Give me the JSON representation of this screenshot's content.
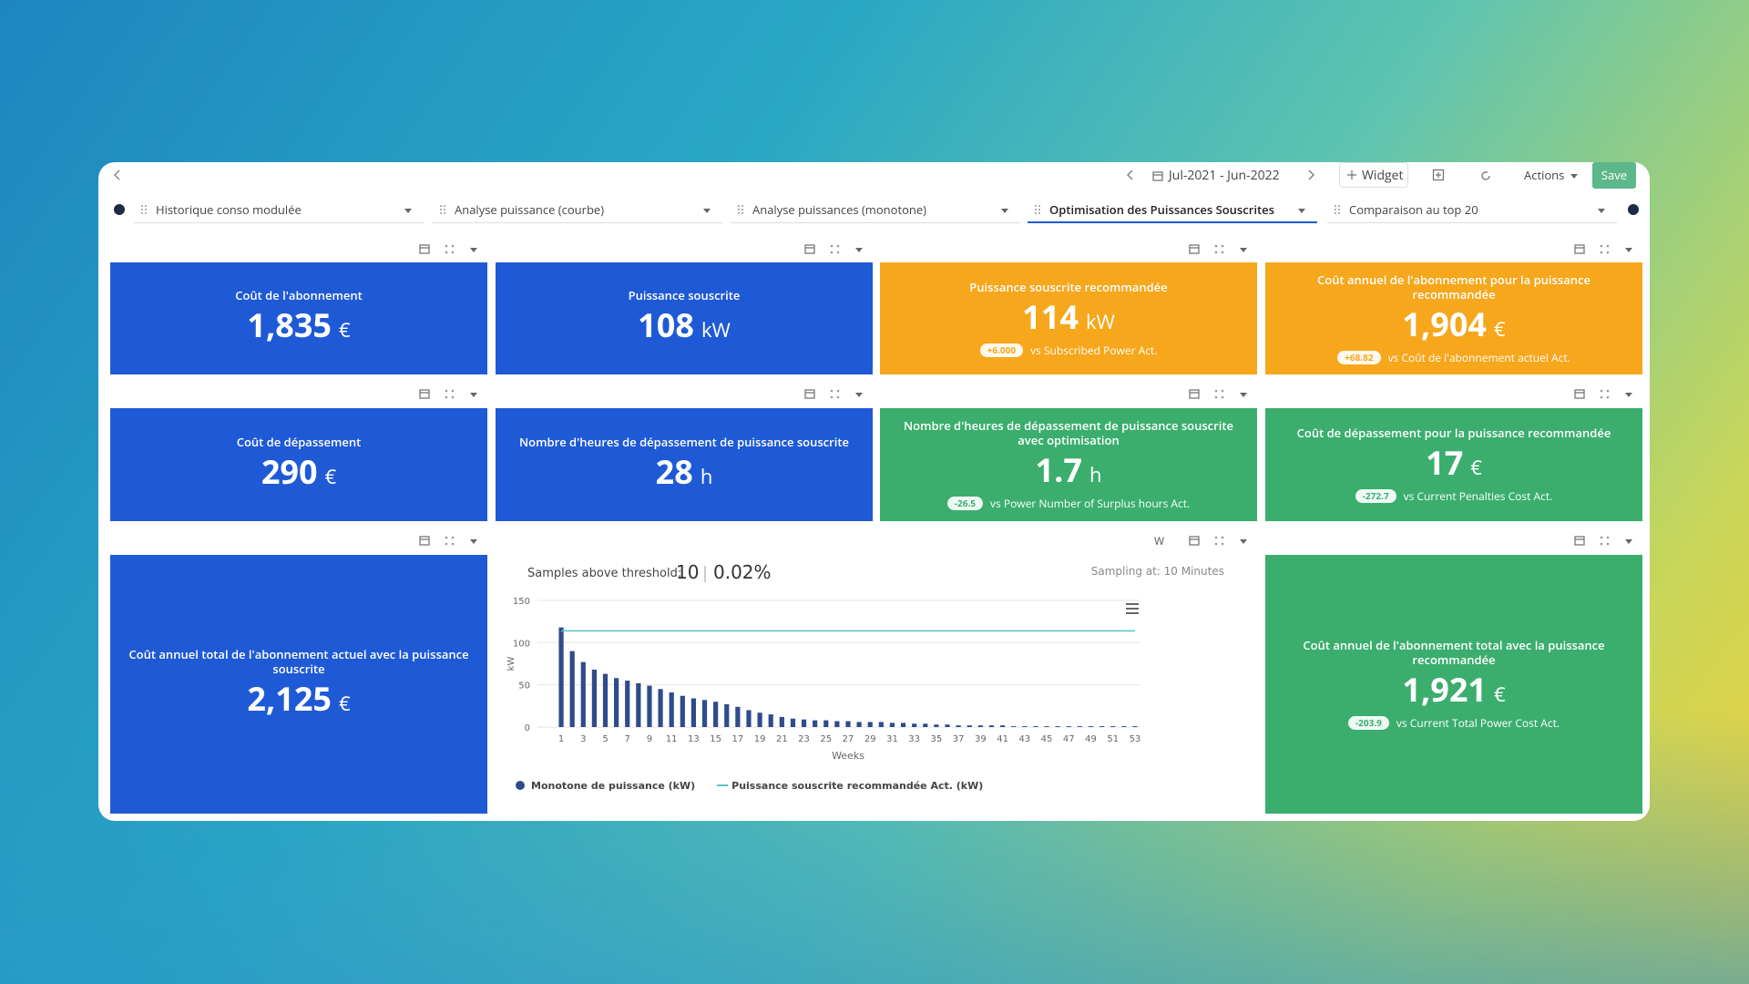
{
  "toolbar": {
    "date_range": "Jul-2021 - Jun-2022",
    "widget": "Widget",
    "actions": "Actions",
    "save": "Save"
  },
  "tabs": [
    "Historique conso modulée",
    "Analyse puissance (courbe)",
    "Analyse puissances (monotone)",
    "Optimisation des Puissances Souscrites",
    "Comparaison au top 20"
  ],
  "active_tab": 3,
  "cards": [
    {
      "title": "Coût de l'abonnement",
      "value": "1,835",
      "unit": "€",
      "color": "#1f5ad6"
    },
    {
      "title": "Puissance souscrite",
      "value": "108",
      "unit": "kW",
      "color": "#1f5ad6"
    },
    {
      "title": "Puissance souscrite recommandée",
      "value": "114",
      "unit": "kW",
      "color": "#f6a71c",
      "delta": "+6.000",
      "comparison": "vs Subscribed Power Act."
    },
    {
      "title": "Coût annuel de l'abonnement pour la puissance recommandée",
      "value": "1,904",
      "unit": "€",
      "color": "#f6a71c",
      "delta": "+68.82",
      "comparison": "vs Coût de l'abonnement actuel Act."
    },
    {
      "title": "Coût de dépassement",
      "value": "290",
      "unit": "€",
      "color": "#1f5ad6"
    },
    {
      "title": "Nombre d'heures de dépassement de puissance souscrite",
      "value": "28",
      "unit": "h",
      "color": "#1f5ad6"
    },
    {
      "title": "Nombre d'heures de dépassement de puissance souscrite avec optimisation",
      "value": "1.7",
      "unit": "h",
      "color": "#3bae6e",
      "delta": "-26.5",
      "comparison": "vs Power Number of Surplus hours Act."
    },
    {
      "title": "Coût de dépassement pour la puissance recommandée",
      "value": "17",
      "unit": "€",
      "color": "#3bae6e",
      "delta": "-272.7",
      "comparison": "vs Current Penalties Cost Act."
    },
    {
      "title": "Coût annuel total de l'abonnement actuel avec la puissance souscrite",
      "value": "2,125",
      "unit": "€",
      "color": "#1f5ad6"
    },
    {
      "title": "Coût annuel de l'abonnement total avec la puissance recommandée",
      "value": "1,921",
      "unit": "€",
      "color": "#3bae6e",
      "delta": "-203.9",
      "comparison": "vs Current Total Power Cost Act."
    }
  ],
  "chart_widget": {
    "period_select": "W",
    "samples_label": "Samples above threshold:",
    "samples_count": "10",
    "samples_percent": "0.02%",
    "sampling": "Sampling at: 10 Minutes"
  },
  "chart_data": {
    "type": "bar",
    "y_label": "kW",
    "x_label": "Weeks",
    "categories": [
      "1",
      null,
      "3",
      null,
      "5",
      null,
      "7",
      null,
      "9",
      null,
      "11",
      null,
      "13",
      null,
      "15",
      null,
      "17",
      null,
      "19",
      null,
      "21",
      null,
      "23",
      null,
      "25",
      null,
      "27",
      null,
      "29",
      null,
      "31",
      null,
      "33",
      null,
      "35",
      null,
      "37",
      null,
      "39",
      null,
      "41",
      null,
      "43",
      null,
      "45",
      null,
      "47",
      null,
      "49",
      null,
      "51",
      null,
      "53"
    ],
    "series": [
      {
        "name": "Monotone de puissance (kW)",
        "type": "bar",
        "color": "#2f4b8c",
        "values": [
          118,
          90,
          77,
          68,
          63,
          58,
          55,
          52,
          49,
          45,
          41,
          37,
          34,
          32,
          30,
          27,
          24,
          20,
          17,
          15,
          12,
          10,
          9,
          8,
          8,
          7,
          7,
          6,
          6,
          6,
          5,
          5,
          4,
          4,
          3,
          3,
          2,
          2,
          2,
          2,
          2,
          1,
          1,
          1,
          1,
          1,
          1,
          1,
          1,
          1,
          1,
          1,
          1
        ]
      },
      {
        "name": "Puissance souscrite recommandée Act. (kW)",
        "type": "line",
        "color": "#5cc3c3",
        "values": [
          114,
          114,
          114,
          114,
          114,
          114,
          114,
          114,
          114,
          114,
          114,
          114,
          114,
          114,
          114,
          114,
          114,
          114,
          114,
          114,
          114,
          114,
          114,
          114,
          114,
          114,
          114,
          114,
          114,
          114,
          114,
          114,
          114,
          114,
          114,
          114,
          114,
          114,
          114,
          114,
          114,
          114,
          114,
          114,
          114,
          114,
          114,
          114,
          114,
          114,
          114,
          114,
          114
        ]
      }
    ],
    "ylim": [
      0,
      150
    ],
    "yticks": [
      0,
      50,
      100,
      150
    ],
    "grid": true
  }
}
